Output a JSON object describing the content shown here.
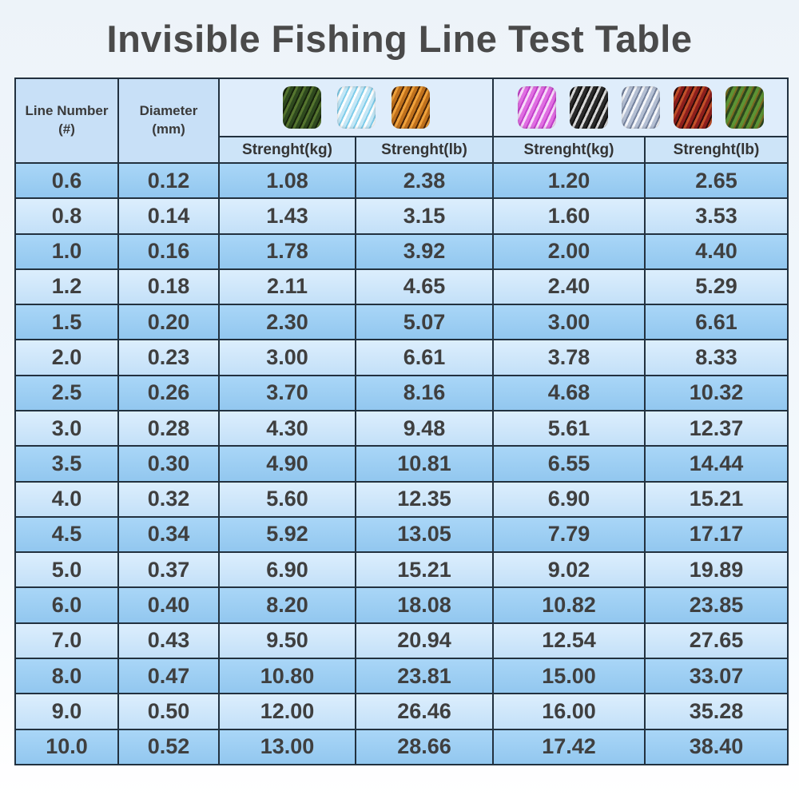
{
  "title": "Invisible Fishing Line Test Table",
  "table": {
    "headers": {
      "line_number_l1": "Line Number",
      "line_number_l2": "(#)",
      "diameter_l1": "Diameter",
      "diameter_l2": "(mm)"
    },
    "groups": [
      {
        "swatches": [
          {
            "name": "moss-green-line",
            "colors": [
              "#2f4a1e",
              "#16230c",
              "#55752f"
            ]
          },
          {
            "name": "ice-blue-line",
            "colors": [
              "#c4e7f6",
              "#7fcdea",
              "#ffffff"
            ]
          },
          {
            "name": "copper-orange-line",
            "colors": [
              "#c0711c",
              "#4a2507",
              "#f0a23c"
            ]
          }
        ],
        "sub_headers": [
          "Strenght(kg)",
          "Strenght(lb)"
        ]
      },
      {
        "swatches": [
          {
            "name": "orchid-pink-line",
            "colors": [
              "#e06ee2",
              "#c341cb",
              "#f7d9f9"
            ]
          },
          {
            "name": "black-line",
            "colors": [
              "#2b2b2b",
              "#0f0f0f",
              "#d6d6d6"
            ]
          },
          {
            "name": "silver-blue-line",
            "colors": [
              "#b4bfd3",
              "#76849f",
              "#f4f6fa"
            ]
          },
          {
            "name": "dark-red-line",
            "colors": [
              "#8e1f1c",
              "#2e0b08",
              "#c2502a"
            ]
          },
          {
            "name": "camo-green-line",
            "colors": [
              "#5c9334",
              "#7c6a22",
              "#2d481d"
            ]
          }
        ],
        "sub_headers": [
          "Strenght(kg)",
          "Strenght(lb)"
        ]
      }
    ],
    "rows": [
      {
        "line": "0.6",
        "dia": "0.12",
        "kg1": "1.08",
        "lb1": "2.38",
        "kg2": "1.20",
        "lb2": "2.65"
      },
      {
        "line": "0.8",
        "dia": "0.14",
        "kg1": "1.43",
        "lb1": "3.15",
        "kg2": "1.60",
        "lb2": "3.53"
      },
      {
        "line": "1.0",
        "dia": "0.16",
        "kg1": "1.78",
        "lb1": "3.92",
        "kg2": "2.00",
        "lb2": "4.40"
      },
      {
        "line": "1.2",
        "dia": "0.18",
        "kg1": "2.11",
        "lb1": "4.65",
        "kg2": "2.40",
        "lb2": "5.29"
      },
      {
        "line": "1.5",
        "dia": "0.20",
        "kg1": "2.30",
        "lb1": "5.07",
        "kg2": "3.00",
        "lb2": "6.61"
      },
      {
        "line": "2.0",
        "dia": "0.23",
        "kg1": "3.00",
        "lb1": "6.61",
        "kg2": "3.78",
        "lb2": "8.33"
      },
      {
        "line": "2.5",
        "dia": "0.26",
        "kg1": "3.70",
        "lb1": "8.16",
        "kg2": "4.68",
        "lb2": "10.32"
      },
      {
        "line": "3.0",
        "dia": "0.28",
        "kg1": "4.30",
        "lb1": "9.48",
        "kg2": "5.61",
        "lb2": "12.37"
      },
      {
        "line": "3.5",
        "dia": "0.30",
        "kg1": "4.90",
        "lb1": "10.81",
        "kg2": "6.55",
        "lb2": "14.44"
      },
      {
        "line": "4.0",
        "dia": "0.32",
        "kg1": "5.60",
        "lb1": "12.35",
        "kg2": "6.90",
        "lb2": "15.21"
      },
      {
        "line": "4.5",
        "dia": "0.34",
        "kg1": "5.92",
        "lb1": "13.05",
        "kg2": "7.79",
        "lb2": "17.17"
      },
      {
        "line": "5.0",
        "dia": "0.37",
        "kg1": "6.90",
        "lb1": "15.21",
        "kg2": "9.02",
        "lb2": "19.89"
      },
      {
        "line": "6.0",
        "dia": "0.40",
        "kg1": "8.20",
        "lb1": "18.08",
        "kg2": "10.82",
        "lb2": "23.85"
      },
      {
        "line": "7.0",
        "dia": "0.43",
        "kg1": "9.50",
        "lb1": "20.94",
        "kg2": "12.54",
        "lb2": "27.65"
      },
      {
        "line": "8.0",
        "dia": "0.47",
        "kg1": "10.80",
        "lb1": "23.81",
        "kg2": "15.00",
        "lb2": "33.07"
      },
      {
        "line": "9.0",
        "dia": "0.50",
        "kg1": "12.00",
        "lb1": "26.46",
        "kg2": "16.00",
        "lb2": "35.28"
      },
      {
        "line": "10.0",
        "dia": "0.52",
        "kg1": "13.00",
        "lb1": "28.66",
        "kg2": "17.42",
        "lb2": "38.40"
      }
    ]
  },
  "colors": {
    "page_bg": "#edf3f9",
    "title_text": "#4a4a4a",
    "border": "#22313f",
    "header_bg": "#c8e0f7",
    "group_header_bg": "#dfedfb",
    "subheader_bg": "#cde4f8",
    "row_dark": "#9bccf3",
    "row_light": "#d2e7fb",
    "cell_text": "#3f3f3f"
  }
}
